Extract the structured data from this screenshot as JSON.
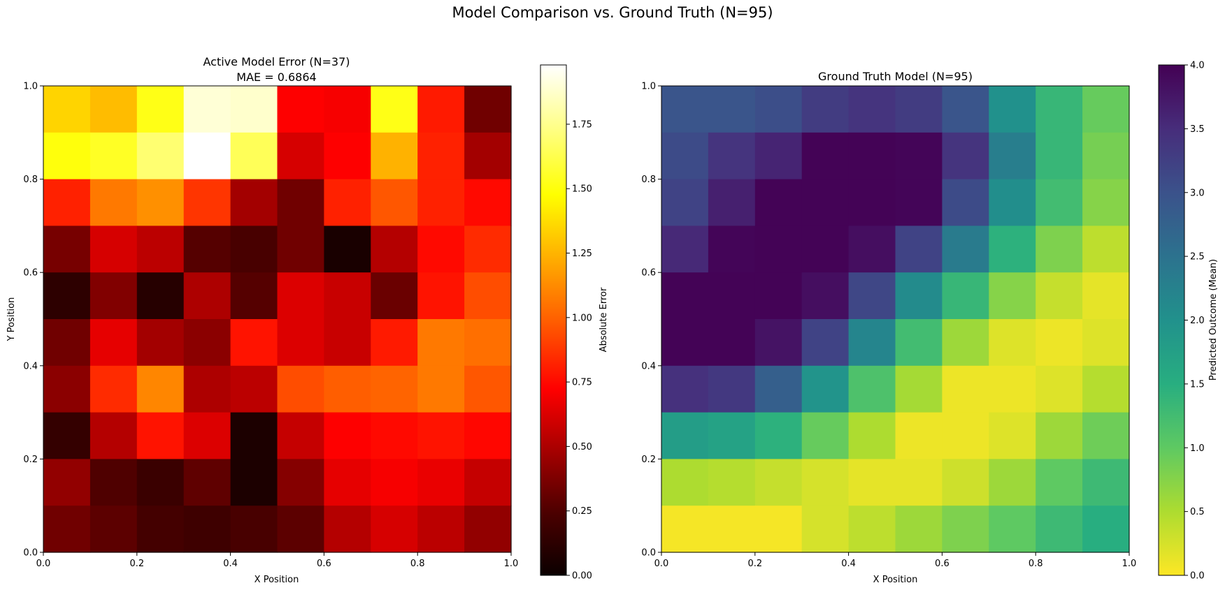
{
  "figure": {
    "suptitle": "Model Comparison vs. Ground Truth (N=95)"
  },
  "chart_data": [
    {
      "type": "heatmap",
      "title": "Active Model Error (N=37)",
      "subtitle": "MAE = 0.6864",
      "xlabel": "X Position",
      "ylabel": "Y Position",
      "xlim": [
        0,
        1
      ],
      "ylim": [
        0,
        1
      ],
      "xticks": [
        "0.0",
        "0.2",
        "0.4",
        "0.6",
        "0.8",
        "1.0"
      ],
      "yticks": [
        "0.0",
        "0.2",
        "0.4",
        "0.6",
        "0.8",
        "1.0"
      ],
      "colormap": "hot",
      "colorbar": {
        "label": "Absolute Error",
        "range": [
          0,
          1.98
        ],
        "ticks": [
          "0.00",
          "0.25",
          "0.50",
          "0.75",
          "1.00",
          "1.25",
          "1.50",
          "1.75"
        ]
      },
      "grid": false,
      "rows_top_to_bottom": [
        [
          1.35,
          1.28,
          1.52,
          1.9,
          1.88,
          0.72,
          0.7,
          1.52,
          0.8,
          0.3
        ],
        [
          1.5,
          1.55,
          1.7,
          1.98,
          1.65,
          0.6,
          0.72,
          1.25,
          0.82,
          0.45
        ],
        [
          0.82,
          1.08,
          1.15,
          0.88,
          0.45,
          0.3,
          0.82,
          0.98,
          0.82,
          0.75
        ],
        [
          0.32,
          0.6,
          0.52,
          0.22,
          0.18,
          0.3,
          0.04,
          0.5,
          0.75,
          0.85
        ],
        [
          0.1,
          0.35,
          0.08,
          0.48,
          0.22,
          0.62,
          0.56,
          0.28,
          0.78,
          0.95
        ],
        [
          0.3,
          0.65,
          0.45,
          0.38,
          0.78,
          0.62,
          0.56,
          0.8,
          1.08,
          1.05
        ],
        [
          0.38,
          0.85,
          1.12,
          0.48,
          0.52,
          0.95,
          1.0,
          1.02,
          1.08,
          0.98
        ],
        [
          0.12,
          0.5,
          0.78,
          0.62,
          0.05,
          0.55,
          0.72,
          0.75,
          0.78,
          0.74
        ],
        [
          0.4,
          0.2,
          0.14,
          0.25,
          0.05,
          0.36,
          0.65,
          0.7,
          0.66,
          0.55
        ],
        [
          0.3,
          0.24,
          0.17,
          0.15,
          0.18,
          0.24,
          0.5,
          0.6,
          0.52,
          0.4
        ]
      ]
    },
    {
      "type": "heatmap",
      "title": "Ground Truth Model (N=95)",
      "xlabel": "X Position",
      "xlim": [
        0,
        1
      ],
      "ylim": [
        0,
        1
      ],
      "xticks": [
        "0.0",
        "0.2",
        "0.4",
        "0.6",
        "0.8",
        "1.0"
      ],
      "yticks": [
        "0.0",
        "0.2",
        "0.4",
        "0.6",
        "0.8",
        "1.0"
      ],
      "colormap": "viridis_r",
      "colorbar": {
        "label": "Predicted Outcome (Mean)",
        "range": [
          0,
          4
        ],
        "ticks": [
          "0.0",
          "0.5",
          "1.0",
          "1.5",
          "2.0",
          "2.5",
          "3.0",
          "3.5",
          "4.0"
        ]
      },
      "grid": false,
      "rows_top_to_bottom": [
        [
          2.95,
          2.95,
          3.05,
          3.3,
          3.4,
          3.3,
          2.95,
          2.0,
          1.35,
          0.95
        ],
        [
          3.1,
          3.4,
          3.6,
          3.98,
          3.98,
          3.95,
          3.4,
          2.3,
          1.35,
          0.85
        ],
        [
          3.2,
          3.65,
          3.98,
          3.98,
          3.98,
          3.95,
          3.1,
          2.05,
          1.25,
          0.75
        ],
        [
          3.55,
          3.95,
          3.98,
          3.98,
          3.85,
          3.2,
          2.35,
          1.45,
          0.8,
          0.4
        ],
        [
          3.98,
          3.98,
          3.98,
          3.85,
          3.15,
          2.1,
          1.35,
          0.75,
          0.35,
          0.15
        ],
        [
          3.98,
          3.98,
          3.8,
          3.2,
          2.2,
          1.25,
          0.6,
          0.2,
          0.1,
          0.2
        ],
        [
          3.45,
          3.35,
          2.8,
          1.95,
          1.15,
          0.55,
          0.1,
          0.1,
          0.2,
          0.45
        ],
        [
          1.8,
          1.7,
          1.45,
          0.95,
          0.5,
          0.1,
          0.1,
          0.2,
          0.6,
          0.9
        ],
        [
          0.5,
          0.45,
          0.35,
          0.25,
          0.15,
          0.15,
          0.3,
          0.6,
          1.0,
          1.3
        ],
        [
          0.05,
          0.05,
          0.05,
          0.25,
          0.4,
          0.6,
          0.8,
          1.0,
          1.3,
          1.5
        ]
      ]
    }
  ]
}
